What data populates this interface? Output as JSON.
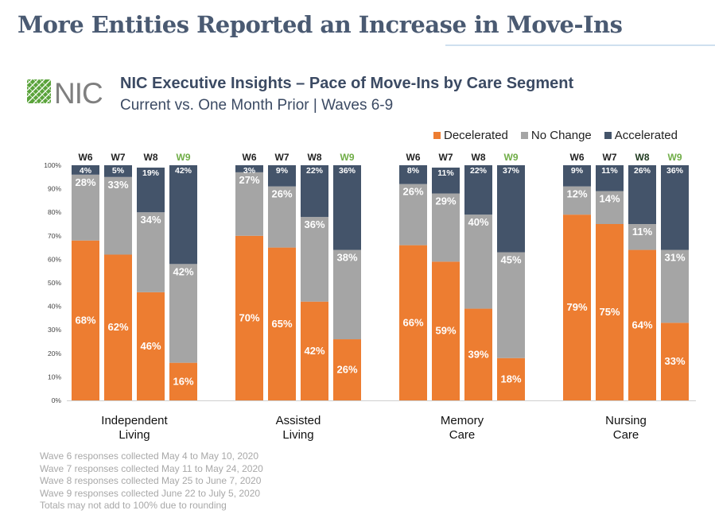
{
  "slide_title": "More Entities Reported an Increase in Move-Ins",
  "logo_text": "NIC",
  "header": {
    "title": "NIC Executive Insights  – Pace of Move-Ins  by Care Segment",
    "subtitle": "Current  vs. One Month Prior | Waves 6-9"
  },
  "colors": {
    "decelerated": "#ed7d31",
    "no_change": "#a5a5a5",
    "accelerated": "#44546a",
    "w9_label": "#70ad47",
    "logo_green": "#5aa33b",
    "logo_gray": "#7f7f7f"
  },
  "legend": [
    {
      "label": "Decelerated",
      "color": "#ed7d31"
    },
    {
      "label": "No Change",
      "color": "#a5a5a5"
    },
    {
      "label": "Accelerated",
      "color": "#44546a"
    }
  ],
  "chart_data": {
    "type": "bar",
    "stacked": true,
    "ylim": [
      0,
      100
    ],
    "yticks": [
      "0%",
      "10%",
      "20%",
      "30%",
      "40%",
      "50%",
      "60%",
      "70%",
      "80%",
      "90%",
      "100%"
    ],
    "series_names": [
      "Decelerated",
      "No Change",
      "Accelerated"
    ],
    "groups": [
      {
        "label_lines": [
          "Independent",
          "Living"
        ],
        "bars": [
          {
            "wave": "W6",
            "values": [
              68,
              28,
              4
            ],
            "labels": [
              "68%",
              "28%",
              "4%"
            ],
            "highlight": false
          },
          {
            "wave": "W7",
            "values": [
              62,
              33,
              5
            ],
            "labels": [
              "62%",
              "33%",
              "5%"
            ],
            "highlight": false
          },
          {
            "wave": "W8",
            "values": [
              46,
              34,
              19
            ],
            "labels": [
              "46%",
              "34%",
              "19%"
            ],
            "highlight": false
          },
          {
            "wave": "W9",
            "values": [
              16,
              42,
              42
            ],
            "labels": [
              "16%",
              "42%",
              "42%"
            ],
            "highlight": true
          }
        ]
      },
      {
        "label_lines": [
          "Assisted",
          "Living"
        ],
        "bars": [
          {
            "wave": "W6",
            "values": [
              70,
              27,
              3
            ],
            "labels": [
              "70%",
              "27%",
              "3%"
            ],
            "highlight": false
          },
          {
            "wave": "W7",
            "values": [
              65,
              26,
              9
            ],
            "labels": [
              "65%",
              "26%",
              "9%"
            ],
            "highlight": false
          },
          {
            "wave": "W8",
            "values": [
              42,
              36,
              22
            ],
            "labels": [
              "42%",
              "36%",
              "22%"
            ],
            "highlight": false
          },
          {
            "wave": "W9",
            "values": [
              26,
              38,
              36
            ],
            "labels": [
              "26%",
              "38%",
              "36%"
            ],
            "highlight": true
          }
        ]
      },
      {
        "label_lines": [
          "Memory",
          "Care"
        ],
        "bars": [
          {
            "wave": "W6",
            "values": [
              66,
              26,
              8
            ],
            "labels": [
              "66%",
              "26%",
              "8%"
            ],
            "highlight": false
          },
          {
            "wave": "W7",
            "values": [
              59,
              29,
              11
            ],
            "labels": [
              "59%",
              "29%",
              "11%"
            ],
            "highlight": false
          },
          {
            "wave": "W8",
            "values": [
              39,
              40,
              22
            ],
            "labels": [
              "39%",
              "40%",
              "22%"
            ],
            "highlight": false
          },
          {
            "wave": "W9",
            "values": [
              18,
              45,
              37
            ],
            "labels": [
              "18%",
              "45%",
              "37%"
            ],
            "highlight": true
          }
        ]
      },
      {
        "label_lines": [
          "Nursing",
          "Care"
        ],
        "bars": [
          {
            "wave": "W6",
            "values": [
              79,
              12,
              9
            ],
            "labels": [
              "79%",
              "12%",
              "9%"
            ],
            "highlight": false
          },
          {
            "wave": "W7",
            "values": [
              75,
              14,
              11
            ],
            "labels": [
              "75%",
              "14%",
              "11%"
            ],
            "highlight": false
          },
          {
            "wave": "W8",
            "values": [
              64,
              11,
              26
            ],
            "labels": [
              "64%",
              "11%",
              "26%"
            ],
            "highlight": "dark"
          },
          {
            "wave": "W9",
            "values": [
              33,
              31,
              36
            ],
            "labels": [
              "33%",
              "31%",
              "36%"
            ],
            "highlight": true
          }
        ]
      }
    ]
  },
  "footnotes": [
    "Wave  6 responses collected May 4 to May 10, 2020",
    "Wave  7 responses collected May 11 to May 24, 2020",
    "Wave  8 responses collected May 25 to June  7, 2020",
    "Wave  9 responses collected June  22 to July 5, 2020",
    "Totals may not add to 100% due to rounding"
  ]
}
